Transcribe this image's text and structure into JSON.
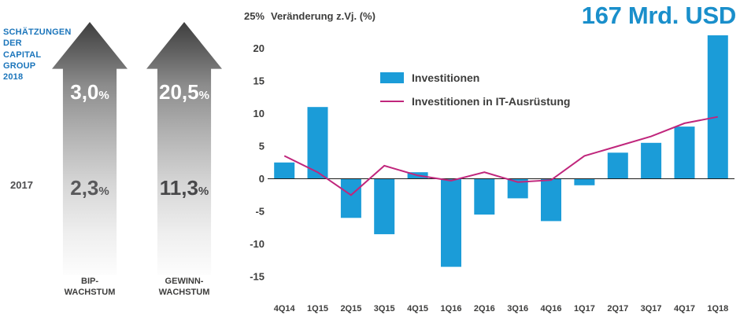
{
  "left_panel": {
    "estimates_label": "SCHÄTZUNGEN\nDER\nCAPITAL\nGROUP\n2018",
    "year_label": "2017",
    "arrows": [
      {
        "name": "BIP-Wachstum",
        "estimate_2018": {
          "value": "3,0",
          "unit": "%"
        },
        "value_2017": {
          "value": "2,3",
          "unit": "%"
        },
        "caption": "BIP-\nWACHSTUM"
      },
      {
        "name": "Gewinn-Wachstum",
        "estimate_2018": {
          "value": "20,5",
          "unit": "%"
        },
        "value_2017": {
          "value": "11,3",
          "unit": "%"
        },
        "caption": "GEWINN-\nWACHSTUM"
      }
    ]
  },
  "headline": {
    "value": "167 Mrd. USD",
    "color": "#1a8fcb"
  },
  "chart_data": {
    "type": "bar+line",
    "title": "Veränderung z.Vj. (%)",
    "axis": {
      "top_label": "25%",
      "title": "Veränderung z.Vj. (%)",
      "ticks": [
        20,
        15,
        10,
        5,
        0,
        -5,
        -10,
        -15
      ]
    },
    "ylim": [
      -15,
      25
    ],
    "grid": false,
    "categories": [
      "4Q14",
      "1Q15",
      "2Q15",
      "3Q15",
      "4Q15",
      "1Q16",
      "2Q16",
      "3Q16",
      "4Q16",
      "1Q17",
      "2Q17",
      "3Q17",
      "4Q17",
      "1Q18"
    ],
    "series": [
      {
        "name": "Investitionen",
        "type": "bar",
        "color": "#1b9cd8",
        "values": [
          2.5,
          11,
          -6,
          -8.5,
          1,
          -13.5,
          -5.5,
          -3,
          -6.5,
          -1,
          4,
          5.5,
          8,
          22
        ]
      },
      {
        "name": "Investitionen in IT-Ausrüstung",
        "type": "line",
        "color": "#c0267c",
        "values": [
          3.5,
          1,
          -2.5,
          2,
          0.5,
          -0.3,
          1,
          -0.5,
          -0.2,
          3.5,
          5,
          6.5,
          8.5,
          9.5
        ]
      }
    ],
    "legend": [
      "Investitionen",
      "Investitionen in IT-Ausrüstung"
    ],
    "legend_position": "inside-upper-center",
    "colors": {
      "bar": "#1b9cd8",
      "line": "#c0267c",
      "axis": "#1d1d1b",
      "text": "#3d3d3c"
    }
  }
}
